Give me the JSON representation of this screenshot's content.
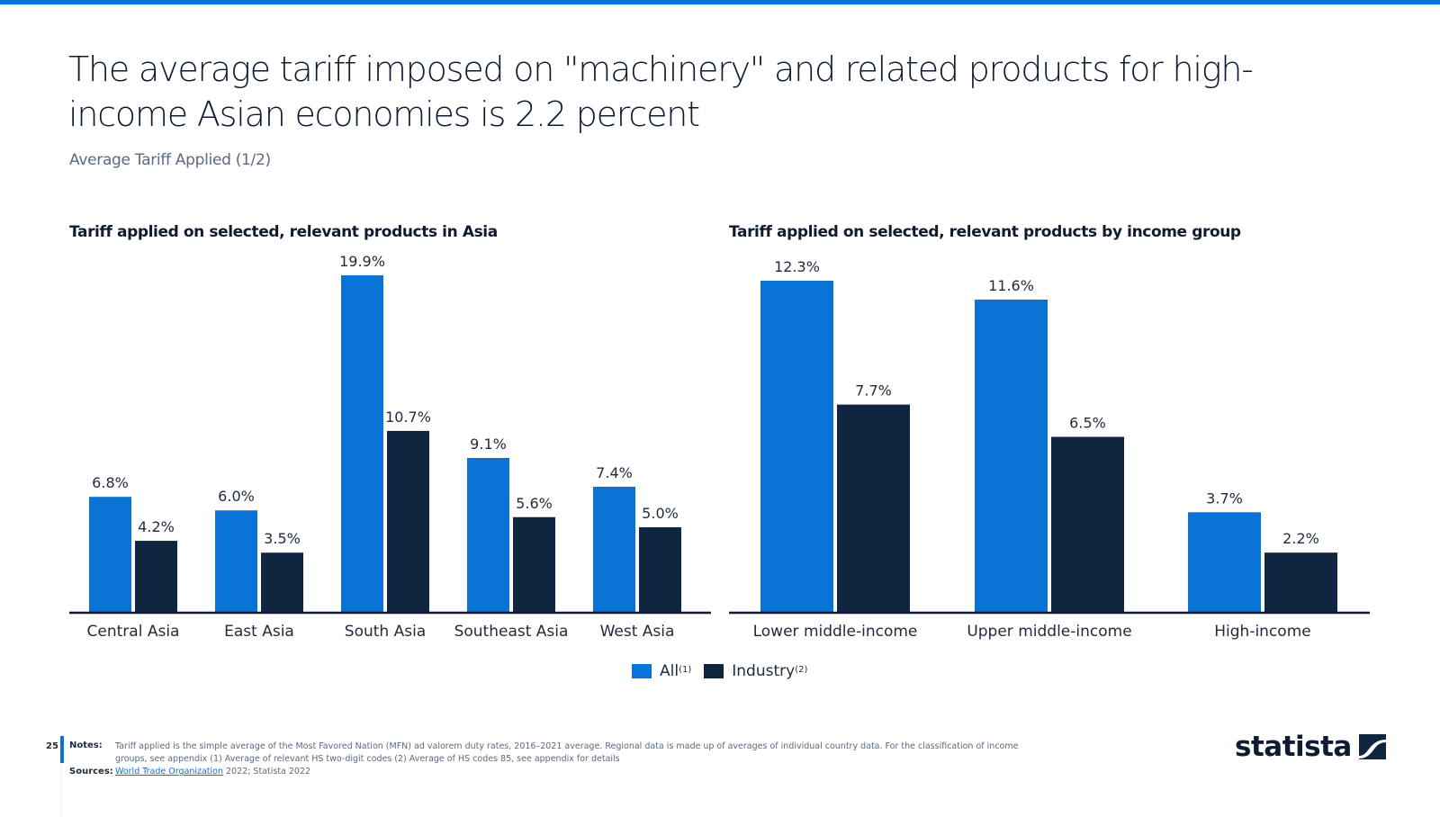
{
  "header": {
    "title": "The average tariff imposed on \"machinery\" and related products for high-income Asian economies is 2.2 percent",
    "title_line1": "The average tariff imposed on \"machinery\" and related products for high-",
    "title_line2": "income Asian economies is 2.2 percent",
    "subtitle": "Average Tariff Applied (1/2)"
  },
  "colors": {
    "accent": "#0a73d6",
    "all": "#0a73d6",
    "industry": "#0f2540",
    "text": "#0f1b30"
  },
  "chart_data": [
    {
      "type": "bar",
      "title": "Tariff applied on selected, relevant products in Asia",
      "categories": [
        "Central Asia",
        "East Asia",
        "South Asia",
        "Southeast Asia",
        "West Asia"
      ],
      "series": [
        {
          "name": "All",
          "footnote": "(1)",
          "values": [
            6.8,
            6.0,
            19.9,
            9.1,
            7.4
          ],
          "labels": [
            "6.8%",
            "6.0%",
            "19.9%",
            "9.1%",
            "7.4%"
          ]
        },
        {
          "name": "Industry",
          "footnote": "(2)",
          "values": [
            4.2,
            3.5,
            10.7,
            5.6,
            5.0
          ],
          "labels": [
            "4.2%",
            "3.5%",
            "10.7%",
            "5.6%",
            "5.0%"
          ]
        }
      ],
      "xlabel": "",
      "ylabel": "",
      "ylim": [
        0,
        19.9
      ],
      "grid": false,
      "unit": "%"
    },
    {
      "type": "bar",
      "title": "Tariff applied on selected, relevant products by income group",
      "categories": [
        "Lower middle-income",
        "Upper middle-income",
        "High-income"
      ],
      "series": [
        {
          "name": "All",
          "footnote": "(1)",
          "values": [
            12.3,
            11.6,
            3.7
          ],
          "labels": [
            "12.3%",
            "11.6%",
            "3.7%"
          ]
        },
        {
          "name": "Industry",
          "footnote": "(2)",
          "values": [
            7.7,
            6.5,
            2.2
          ],
          "labels": [
            "7.7%",
            "6.5%",
            "2.2%"
          ]
        }
      ],
      "xlabel": "",
      "ylabel": "",
      "ylim": [
        0,
        12.3
      ],
      "grid": false,
      "unit": "%"
    }
  ],
  "legend": {
    "position": "bottom-center",
    "items": [
      {
        "label": "All",
        "footnote": "(1)"
      },
      {
        "label": "Industry",
        "footnote": "(2)"
      }
    ]
  },
  "footer": {
    "page_number": "25",
    "notes_label": "Notes:",
    "notes_text": "Tariff applied is the simple average of the Most Favored Nation (MFN) ad valorem duty rates, 2016–2021 average. Regional data is made up of averages of individual country data. For the classification of income groups, see appendix (1) Average of relevant HS two-digit codes (2) Average of HS codes 85, see appendix for details",
    "sources_label": "Sources:",
    "source_link": "World Trade Organization",
    "sources_rest": " 2022; Statista 2022",
    "logo_text": "statista"
  }
}
